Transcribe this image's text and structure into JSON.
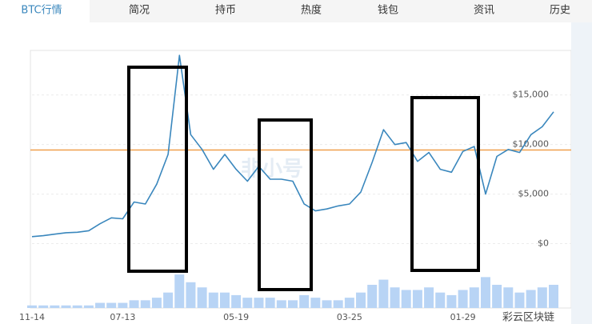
{
  "tabs": [
    "BTC行情",
    "简况",
    "持币",
    "热度",
    "钱包",
    "资讯",
    "历史"
  ],
  "active_tab": 0,
  "watermarks": [
    "非小号",
    "彩云区块链"
  ],
  "chart_data": {
    "type": "line",
    "categories": [
      "11-14",
      null,
      null,
      null,
      null,
      null,
      null,
      null,
      "07-13",
      null,
      null,
      null,
      null,
      null,
      null,
      null,
      null,
      null,
      "05-19",
      null,
      null,
      null,
      null,
      null,
      null,
      null,
      null,
      null,
      "03-25",
      null,
      null,
      null,
      null,
      null,
      null,
      null,
      null,
      null,
      "01-29",
      null,
      null,
      null,
      null,
      null,
      null,
      null,
      null
    ],
    "series": [
      {
        "color": "#3a87bd",
        "values": [
          700,
          800,
          950,
          1100,
          1150,
          1300,
          2000,
          2600,
          2500,
          4200,
          4000,
          6000,
          9000,
          19000,
          11000,
          9500,
          7500,
          9000,
          7500,
          6300,
          7800,
          6500,
          6500,
          6300,
          4000,
          3300,
          3500,
          3800,
          4000,
          5200,
          8200,
          11500,
          10000,
          10200,
          8300,
          9200,
          7500,
          7200,
          9300,
          9800,
          5000,
          8800,
          9500,
          9200,
          11000,
          11800,
          13300
        ]
      },
      {
        "color": "#b8d4f5",
        "axis": "y2",
        "kind": "bar",
        "values": [
          1,
          1,
          1,
          1,
          1,
          1,
          2,
          2,
          2,
          3,
          3,
          4,
          6,
          13,
          10,
          8,
          6,
          6,
          5,
          4,
          4,
          4,
          3,
          3,
          5,
          4,
          3,
          3,
          4,
          6,
          9,
          11,
          8,
          7,
          7,
          8,
          6,
          5,
          7,
          8,
          12,
          9,
          8,
          6,
          7,
          8,
          9
        ]
      }
    ],
    "ylim": [
      -6500,
      19500
    ],
    "yticks": [
      {
        "value": 0,
        "label": "$0"
      },
      {
        "value": 5000,
        "label": "$5,000"
      },
      {
        "value": 10000,
        "label": "$10,000"
      },
      {
        "value": 15000,
        "label": "$15,000"
      }
    ],
    "y2lim": [
      0,
      100
    ],
    "grid": true,
    "reference_line": {
      "value": 9450,
      "color": "#f0a04b"
    }
  }
}
